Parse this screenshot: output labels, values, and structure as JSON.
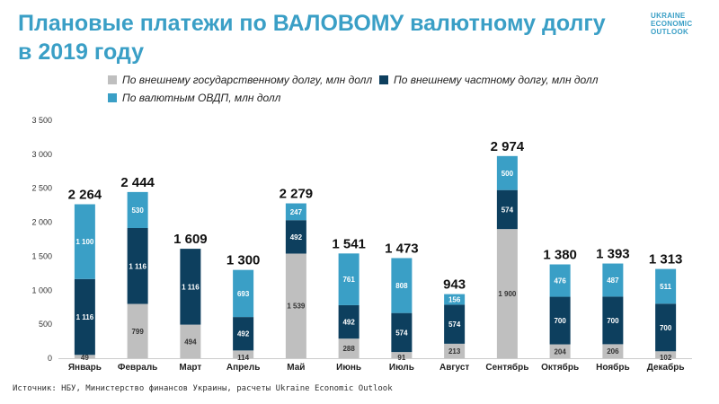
{
  "header": {
    "title": "Плановые платежи по ВАЛОВОМУ валютному долгу в 2019 году",
    "brand_line1": "UKRAINE",
    "brand_line2": "ECONOMIC",
    "brand_line3": "OUTLOOK"
  },
  "source": "Источник: НБУ, Министерство финансов Украины, расчеты Ukraine Economic Outlook",
  "colors": {
    "gov": "#bfbfbf",
    "private": "#0d3f5e",
    "ovdp": "#3a9fc6",
    "title": "#3a9fc6"
  },
  "chart_data": {
    "type": "bar",
    "stacked": true,
    "title": "Плановые платежи по ВАЛОВОМУ валютному долгу в 2019 году",
    "xlabel": "",
    "ylabel": "",
    "ylim": [
      0,
      3500
    ],
    "yticks": [
      0,
      500,
      1000,
      1500,
      2000,
      2500,
      3000,
      3500
    ],
    "ytick_labels": [
      "0",
      "500",
      "1 000",
      "1 500",
      "2 000",
      "2 500",
      "3 000",
      "3 500"
    ],
    "grid": false,
    "legend_position": "top",
    "categories": [
      "Январь",
      "Февраль",
      "Март",
      "Апрель",
      "Май",
      "Июнь",
      "Июль",
      "Август",
      "Сентябрь",
      "Октябрь",
      "Ноябрь",
      "Декабрь"
    ],
    "series": [
      {
        "name": "По внешнему государственному долгу, млн долл",
        "key": "gov",
        "values": [
          49,
          799,
          494,
          114,
          1539,
          288,
          91,
          213,
          1900,
          204,
          206,
          102
        ],
        "labels": [
          "49",
          "799",
          "494",
          "114",
          "1 539",
          "288",
          "91",
          "213",
          "1 900",
          "204",
          "206",
          "102"
        ]
      },
      {
        "name": "По внешнему частному долгу, млн долл",
        "key": "private",
        "values": [
          1116,
          1116,
          1116,
          492,
          492,
          492,
          574,
          574,
          574,
          700,
          700,
          700
        ],
        "labels": [
          "1 116",
          "1 116",
          "1 116",
          "492",
          "492",
          "492",
          "574",
          "574",
          "574",
          "700",
          "700",
          "700"
        ]
      },
      {
        "name": "По валютным ОВДП, млн долл",
        "key": "ovdp",
        "values": [
          1100,
          530,
          0,
          693,
          247,
          761,
          808,
          156,
          500,
          476,
          487,
          511
        ],
        "labels": [
          "1 100",
          "530",
          "",
          "693",
          "247",
          "761",
          "808",
          "156",
          "500",
          "476",
          "487",
          "511"
        ]
      }
    ],
    "totals": [
      2264,
      2444,
      1609,
      1300,
      2279,
      1541,
      1473,
      943,
      2974,
      1380,
      1393,
      1313
    ],
    "total_labels": [
      "2 264",
      "2 444",
      "1 609",
      "1 300",
      "2 279",
      "1 541",
      "1 473",
      "943",
      "2 974",
      "1 380",
      "1 393",
      "1 313"
    ]
  }
}
